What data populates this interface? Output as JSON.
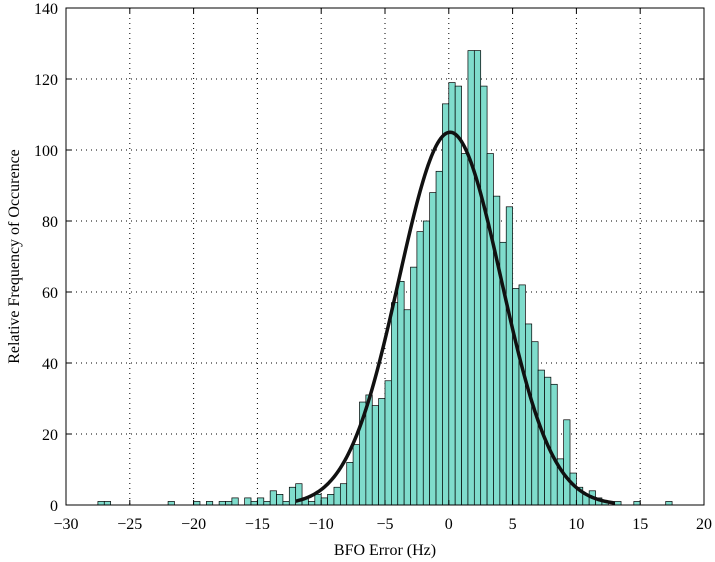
{
  "chart_data": {
    "type": "bar",
    "xlabel": "BFO Error (Hz)",
    "ylabel": "Relative Frequency of Occurence",
    "xlim": [
      -30,
      20
    ],
    "ylim": [
      0,
      140
    ],
    "xticks": [
      -30,
      -25,
      -20,
      -15,
      -10,
      -5,
      0,
      5,
      10,
      15,
      20
    ],
    "yticks": [
      0,
      20,
      40,
      60,
      80,
      100,
      120,
      140
    ],
    "xtick_labels": [
      "−30",
      "−25",
      "−20",
      "−15",
      "−10",
      "−5",
      "0",
      "5",
      "10",
      "15",
      "20"
    ],
    "ytick_labels": [
      "0",
      "20",
      "40",
      "60",
      "80",
      "100",
      "120",
      "140"
    ],
    "grid": true,
    "grid_style": "dotted",
    "bar_color": "#7fdccc",
    "curve_color": "#111111",
    "bin_width": 0.5,
    "bins": [
      {
        "x": -27.25,
        "y": 1
      },
      {
        "x": -26.75,
        "y": 1
      },
      {
        "x": -21.75,
        "y": 1
      },
      {
        "x": -19.75,
        "y": 1
      },
      {
        "x": -18.75,
        "y": 1
      },
      {
        "x": -17.75,
        "y": 1
      },
      {
        "x": -17.25,
        "y": 1
      },
      {
        "x": -16.75,
        "y": 2
      },
      {
        "x": -15.75,
        "y": 2
      },
      {
        "x": -15.25,
        "y": 1
      },
      {
        "x": -14.75,
        "y": 2
      },
      {
        "x": -14.25,
        "y": 1
      },
      {
        "x": -13.75,
        "y": 4
      },
      {
        "x": -13.25,
        "y": 3
      },
      {
        "x": -12.75,
        "y": 1
      },
      {
        "x": -12.25,
        "y": 5
      },
      {
        "x": -11.75,
        "y": 6
      },
      {
        "x": -11.25,
        "y": 2
      },
      {
        "x": -10.75,
        "y": 1
      },
      {
        "x": -10.25,
        "y": 3
      },
      {
        "x": -9.75,
        "y": 2
      },
      {
        "x": -9.25,
        "y": 3
      },
      {
        "x": -8.75,
        "y": 5
      },
      {
        "x": -8.25,
        "y": 6
      },
      {
        "x": -7.75,
        "y": 12
      },
      {
        "x": -7.25,
        "y": 17
      },
      {
        "x": -6.75,
        "y": 29
      },
      {
        "x": -6.25,
        "y": 31
      },
      {
        "x": -5.75,
        "y": 28
      },
      {
        "x": -5.25,
        "y": 30
      },
      {
        "x": -4.75,
        "y": 35
      },
      {
        "x": -4.25,
        "y": 57
      },
      {
        "x": -3.75,
        "y": 63
      },
      {
        "x": -3.25,
        "y": 55
      },
      {
        "x": -2.75,
        "y": 67
      },
      {
        "x": -2.25,
        "y": 77
      },
      {
        "x": -1.75,
        "y": 80
      },
      {
        "x": -1.25,
        "y": 88
      },
      {
        "x": -0.75,
        "y": 94
      },
      {
        "x": -0.25,
        "y": 113
      },
      {
        "x": 0.25,
        "y": 119
      },
      {
        "x": 0.75,
        "y": 118
      },
      {
        "x": 1.25,
        "y": 99
      },
      {
        "x": 1.75,
        "y": 128
      },
      {
        "x": 2.25,
        "y": 128
      },
      {
        "x": 2.75,
        "y": 118
      },
      {
        "x": 3.25,
        "y": 99
      },
      {
        "x": 3.75,
        "y": 87
      },
      {
        "x": 4.25,
        "y": 74
      },
      {
        "x": 4.75,
        "y": 84
      },
      {
        "x": 5.25,
        "y": 61
      },
      {
        "x": 5.75,
        "y": 62
      },
      {
        "x": 6.25,
        "y": 51
      },
      {
        "x": 6.75,
        "y": 46
      },
      {
        "x": 7.25,
        "y": 38
      },
      {
        "x": 7.75,
        "y": 36
      },
      {
        "x": 8.25,
        "y": 34
      },
      {
        "x": 8.75,
        "y": 13
      },
      {
        "x": 9.25,
        "y": 24
      },
      {
        "x": 9.75,
        "y": 9
      },
      {
        "x": 10.25,
        "y": 5
      },
      {
        "x": 10.75,
        "y": 3
      },
      {
        "x": 11.25,
        "y": 4
      },
      {
        "x": 11.75,
        "y": 2
      },
      {
        "x": 12.25,
        "y": 1
      },
      {
        "x": 13.25,
        "y": 1
      },
      {
        "x": 14.75,
        "y": 1
      },
      {
        "x": 17.25,
        "y": 1
      }
    ],
    "fit_curve": {
      "type": "gaussian",
      "mean": 0.1,
      "sigma": 4.0,
      "peak": 105,
      "x_range": [
        -12,
        13
      ]
    }
  }
}
